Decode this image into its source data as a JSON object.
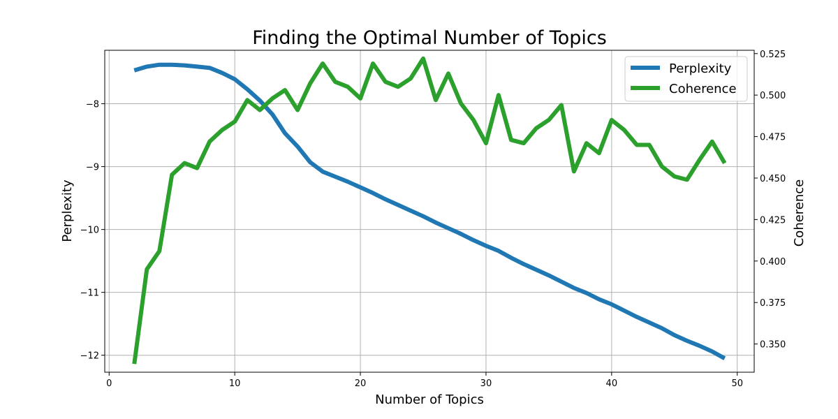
{
  "chart_data": {
    "type": "line",
    "title": "Finding the Optimal Number of Topics",
    "xlabel": "Number of Topics",
    "ylabel_left": "Perplexity",
    "ylabel_right": "Coherence",
    "xlim": [
      -0.35,
      51.35
    ],
    "ylim_left": [
      -12.27,
      -7.15
    ],
    "ylim_right": [
      0.333,
      0.527
    ],
    "xticks": [
      0,
      10,
      20,
      30,
      40,
      50
    ],
    "yticks_left": [
      -12,
      -11,
      -10,
      -9,
      -8
    ],
    "yticks_right": [
      0.35,
      0.375,
      0.4,
      0.425,
      0.45,
      0.475,
      0.5,
      0.525
    ],
    "grid": true,
    "legend_position": "top-right",
    "x": [
      2,
      3,
      4,
      5,
      6,
      7,
      8,
      9,
      10,
      11,
      12,
      13,
      14,
      15,
      16,
      17,
      18,
      19,
      20,
      21,
      22,
      23,
      24,
      25,
      26,
      27,
      28,
      29,
      30,
      31,
      32,
      33,
      34,
      35,
      36,
      37,
      38,
      39,
      40,
      41,
      42,
      43,
      44,
      45,
      46,
      47,
      48,
      49
    ],
    "series": [
      {
        "name": "Perplexity",
        "axis": "left",
        "color": "#1f77b4",
        "values": [
          -7.47,
          -7.41,
          -7.38,
          -7.38,
          -7.39,
          -7.41,
          -7.43,
          -7.51,
          -7.61,
          -7.77,
          -7.95,
          -8.17,
          -8.47,
          -8.68,
          -8.93,
          -9.08,
          -9.16,
          -9.24,
          -9.33,
          -9.42,
          -9.52,
          -9.61,
          -9.7,
          -9.79,
          -9.89,
          -9.98,
          -10.07,
          -10.17,
          -10.26,
          -10.34,
          -10.45,
          -10.55,
          -10.64,
          -10.73,
          -10.83,
          -10.93,
          -11.01,
          -11.11,
          -11.19,
          -11.29,
          -11.39,
          -11.48,
          -11.57,
          -11.68,
          -11.77,
          -11.85,
          -11.94,
          -12.05
        ]
      },
      {
        "name": "Coherence",
        "axis": "right",
        "color": "#2ca02c",
        "values": [
          0.338,
          0.395,
          0.406,
          0.452,
          0.459,
          0.456,
          0.472,
          0.479,
          0.484,
          0.497,
          0.491,
          0.498,
          0.503,
          0.491,
          0.507,
          0.519,
          0.508,
          0.505,
          0.498,
          0.519,
          0.508,
          0.505,
          0.51,
          0.522,
          0.497,
          0.513,
          0.495,
          0.485,
          0.471,
          0.5,
          0.473,
          0.471,
          0.48,
          0.485,
          0.494,
          0.454,
          0.471,
          0.465,
          0.485,
          0.479,
          0.47,
          0.47,
          0.457,
          0.451,
          0.449,
          0.461,
          0.472,
          0.459
        ]
      }
    ]
  }
}
